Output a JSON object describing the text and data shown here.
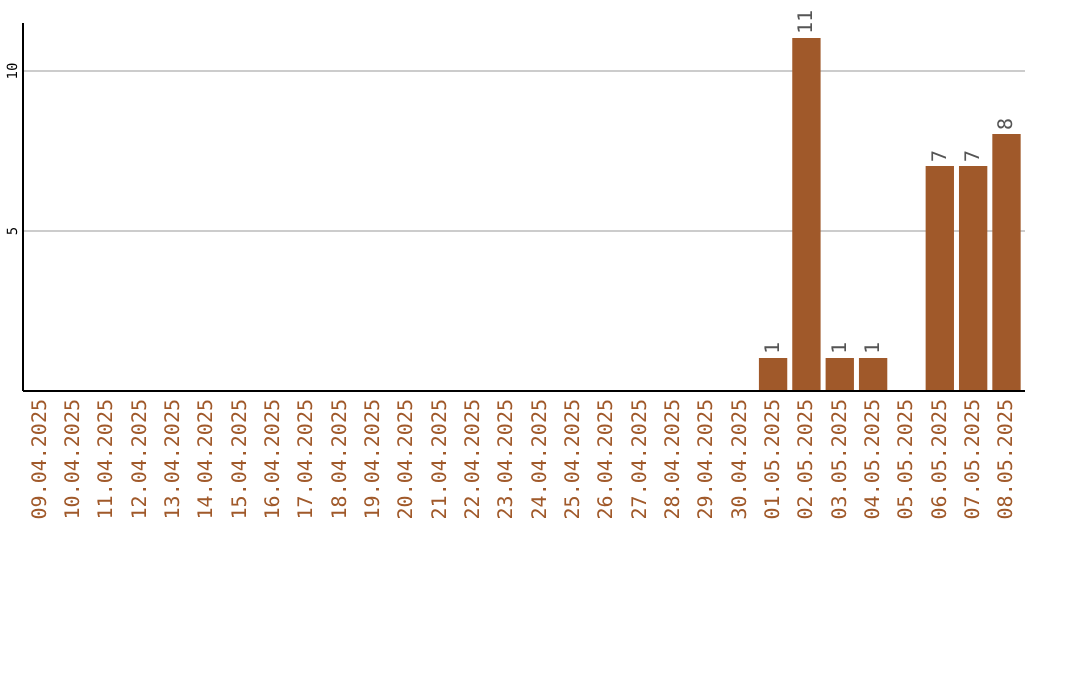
{
  "chart_data": {
    "type": "bar",
    "categories": [
      "09.04.2025",
      "10.04.2025",
      "11.04.2025",
      "12.04.2025",
      "13.04.2025",
      "14.04.2025",
      "15.04.2025",
      "16.04.2025",
      "17.04.2025",
      "18.04.2025",
      "19.04.2025",
      "20.04.2025",
      "21.04.2025",
      "22.04.2025",
      "23.04.2025",
      "24.04.2025",
      "25.04.2025",
      "26.04.2025",
      "27.04.2025",
      "28.04.2025",
      "29.04.2025",
      "30.04.2025",
      "01.05.2025",
      "02.05.2025",
      "03.05.2025",
      "04.05.2025",
      "05.05.2025",
      "06.05.2025",
      "07.05.2025",
      "08.05.2025"
    ],
    "values": [
      0,
      0,
      0,
      0,
      0,
      0,
      0,
      0,
      0,
      0,
      0,
      0,
      0,
      0,
      0,
      0,
      0,
      0,
      0,
      0,
      0,
      0,
      1,
      11,
      1,
      1,
      0,
      7,
      7,
      8
    ],
    "value_labels": [
      null,
      null,
      null,
      null,
      null,
      null,
      null,
      null,
      null,
      null,
      null,
      null,
      null,
      null,
      null,
      null,
      null,
      null,
      null,
      null,
      null,
      null,
      "1",
      "11",
      "1",
      "1",
      null,
      "7",
      "7",
      "8"
    ],
    "color": "#a0592a",
    "ylim": [
      0,
      11.5
    ],
    "yticks": [
      5,
      10
    ],
    "grid": "y"
  }
}
